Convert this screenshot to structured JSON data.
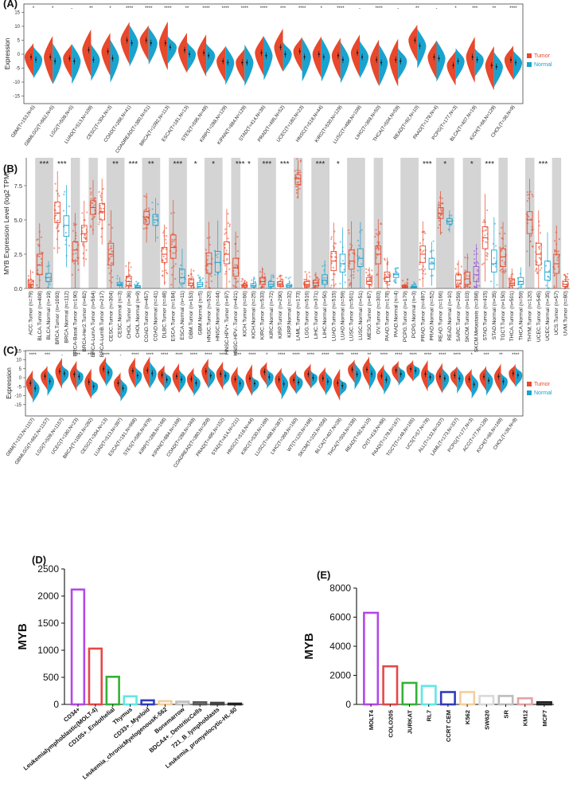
{
  "colors": {
    "tumor": "#e8482c",
    "normal": "#1aa3cf",
    "grey_band": "#d4d4d4",
    "metastasis": "#9b59d0"
  },
  "legend": {
    "tumor": "Tumor",
    "normal": "Normal"
  },
  "chart_data": [
    {
      "panel": "(A)",
      "type": "violin",
      "ylabel": "Expression",
      "ylim": [
        -17,
        17
      ],
      "yticks": [
        15,
        10,
        5,
        0,
        -5,
        -10,
        -15
      ],
      "categories": [
        "GBM(T=153,N=5)",
        "GBMLGG(T=662,N=5)",
        "LGG(T=509,N=5)",
        "LUAD(T=513,N=109)",
        "CESC(T=304,N=3)",
        "COAD(T=288,N=41)",
        "COADREAD(T=380,N=51)",
        "BRCA(T=1092,N=113)",
        "ESCA(T=181,N=13)",
        "STES(T=595,N=49)",
        "KIRP(T=288,N=129)",
        "KIPAN(T=884,N=129)",
        "STAD(T=414,N=36)",
        "PRAD(T=495,N=52)",
        "UCEC(T=180,N=23)",
        "HNSC(T=518,N=44)",
        "KIRC(T=530,N=129)",
        "LUSC(T=498,N=109)",
        "LIHC(T=369,N=50)",
        "THCA(T=504,N=59)",
        "READ(T=92,N=10)",
        "PAAD(T=178,N=4)",
        "PCPG(T=177,N=3)",
        "BLCA(T=407,N=19)",
        "KICH(T=66,N=129)",
        "CHOL(T=36,N=9)"
      ],
      "significance": [
        "*",
        "*",
        "-",
        "**",
        "*",
        "****",
        "****",
        "****",
        "**",
        "****",
        "****",
        "****",
        "****",
        "***",
        "****",
        "*",
        "****",
        "-",
        "****",
        "-",
        "**",
        "-",
        "*",
        "***",
        "**",
        "****"
      ],
      "tumor_median": [
        -1,
        -1,
        -1.5,
        1.5,
        1,
        5,
        5,
        4,
        1.5,
        0.5,
        -2.5,
        -3,
        0.5,
        2.5,
        1,
        0,
        -0.5,
        0.5,
        -2,
        -2,
        5,
        -1,
        -4,
        -1,
        -4,
        -2
      ],
      "normal_median": [
        -2,
        -2.5,
        -2.5,
        -2,
        -1.5,
        4,
        4,
        2.5,
        0,
        -0.5,
        -3,
        -3,
        -0.5,
        0,
        -1,
        -1,
        -2,
        -1,
        -3,
        -2.5,
        3,
        -1.5,
        -2.5,
        -2,
        -4.5,
        -3
      ]
    },
    {
      "panel": "(B)",
      "type": "box",
      "ylabel": "MYB Expression Level (log2 TPM)",
      "ylim": [
        0,
        10
      ],
      "yticks": [
        0,
        2.5,
        5,
        7.5
      ],
      "yticklabels": [
        "0.0",
        "2.5",
        "5.0",
        "7.5"
      ],
      "categories": [
        "ACC.Tumor (n=79)",
        "BLCA.Tumor (n=408)",
        "BLCA.Normal (n=19)",
        "BRCA.Tumor (n=1093)",
        "BRCA.Normal (n=112)",
        "BRCA-Basal.Tumor (n=190)",
        "BRCA-Her2.Tumor (n=82)",
        "BRCA-LumA.Tumor (n=564)",
        "BRCA-LumB.Tumor (n=217)",
        "CESC.Tumor (n=304)",
        "CESC.Normal (n=3)",
        "CHOL.Tumor (n=36)",
        "CHOL.Normal (n=9)",
        "COAD.Tumor (n=457)",
        "COAD.Normal (n=41)",
        "DLBC.Tumor (n=48)",
        "ESCA.Tumor (n=184)",
        "ESCA.Normal (n=11)",
        "GBM.Tumor (n=153)",
        "GBM.Normal (n=5)",
        "HNSC.Tumor (n=520)",
        "HNSC.Normal (n=44)",
        "HNSC-HPV+.Tumor (n=97)",
        "HNSC-HPV-.Tumor (n=421)",
        "KICH.Tumor (n=66)",
        "KICH.Normal (n=25)",
        "KIRC.Tumor (n=533)",
        "KIRC.Normal (n=72)",
        "KIRP.Tumor (n=290)",
        "KIRP.Normal (n=32)",
        "LAML.Tumor (n=173)",
        "LGG.Tumor (n=516)",
        "LIHC.Tumor (n=371)",
        "LIHC.Normal (n=50)",
        "LUAD.Tumor (n=515)",
        "LUAD.Normal (n=59)",
        "LUSC.Tumor (n=501)",
        "LUSC.Normal (n=51)",
        "MESO.Tumor (n=87)",
        "OV.Tumor (n=303)",
        "PAAD.Tumor (n=178)",
        "PAAD.Normal (n=4)",
        "PCPG.Tumor (n=179)",
        "PCPG.Normal (n=3)",
        "PRAD.Tumor (n=497)",
        "PRAD.Normal (n=52)",
        "READ.Tumor (n=166)",
        "READ.Normal (n=10)",
        "SARC.Tumor (n=259)",
        "SKCM.Tumor (n=103)",
        "SKCM.Metastasis (n=368)",
        "STAD.Tumor (n=415)",
        "STAD.Normal (n=35)",
        "TGCT.Tumor (n=150)",
        "THCA.Tumor (n=501)",
        "THCA.Normal (n=59)",
        "THYM.Tumor (n=120)",
        "UCEC.Tumor (n=545)",
        "UCEC.Normal (n=35)",
        "UCS.Tumor (n=57)",
        "UVM.Tumor (n=80)"
      ],
      "median": [
        0.3,
        1.7,
        0.8,
        5.5,
        4.6,
        2.8,
        4.0,
        5.9,
        5.6,
        2.5,
        0.3,
        0.5,
        0.1,
        5.2,
        5.0,
        2.5,
        3.0,
        0.8,
        0.4,
        0.3,
        1.8,
        1.9,
        2.5,
        1.5,
        0.2,
        0.2,
        0.5,
        0.3,
        0.3,
        0.2,
        8.0,
        0.3,
        0.4,
        0.6,
        2.0,
        1.8,
        2.0,
        2.2,
        0.5,
        2.5,
        0.8,
        1.0,
        0.1,
        0.1,
        2.5,
        1.8,
        5.5,
        4.9,
        0.6,
        0.7,
        1.0,
        3.7,
        1.8,
        2.3,
        0.4,
        0.5,
        5.0,
        2.5,
        1.2,
        1.8,
        0.3
      ],
      "q1": [
        0.1,
        1.0,
        0.5,
        4.8,
        3.8,
        2.0,
        3.4,
        5.4,
        5.0,
        1.7,
        0.2,
        0.2,
        0.05,
        4.7,
        4.6,
        1.9,
        2.2,
        0.4,
        0.2,
        0.15,
        1.1,
        1.2,
        1.8,
        0.9,
        0.1,
        0.1,
        0.3,
        0.15,
        0.15,
        0.1,
        7.6,
        0.1,
        0.2,
        0.3,
        1.3,
        1.2,
        1.4,
        1.6,
        0.3,
        1.8,
        0.5,
        0.8,
        0.05,
        0.05,
        1.9,
        1.4,
        5.1,
        4.7,
        0.3,
        0.3,
        0.5,
        2.9,
        1.2,
        1.6,
        0.2,
        0.3,
        4.0,
        1.7,
        0.6,
        1.1,
        0.15
      ],
      "q3": [
        0.6,
        2.5,
        1.1,
        6.3,
        5.3,
        3.4,
        4.6,
        6.4,
        6.2,
        3.3,
        0.45,
        0.9,
        0.2,
        5.6,
        5.4,
        3.0,
        3.9,
        1.4,
        0.7,
        0.45,
        2.6,
        2.7,
        3.4,
        2.2,
        0.3,
        0.35,
        0.8,
        0.5,
        0.5,
        0.3,
        8.3,
        0.5,
        0.6,
        1.0,
        2.7,
        2.5,
        2.8,
        2.9,
        0.8,
        3.1,
        1.2,
        1.1,
        0.2,
        0.15,
        3.1,
        2.2,
        5.9,
        5.1,
        1.0,
        1.2,
        1.6,
        4.5,
        2.8,
        2.9,
        0.7,
        0.8,
        5.6,
        3.3,
        2.0,
        2.5,
        0.5
      ],
      "significance": {
        "BLCA.Tumor (n=408)": "***",
        "BRCA.Tumor (n=1093)": "***",
        "CESC.Tumor (n=304)": "**",
        "CHOL.Tumor (n=36)": "***",
        "COAD.Tumor (n=457)": "**",
        "ESCA.Tumor (n=184)": "***",
        "GBM.Tumor (n=153)": "*",
        "HNSC.Tumor (n=520)": "*",
        "HNSC-HPV-.Tumor (n=421)": "***",
        "KICH.Tumor (n=66)": "*",
        "KIRC.Tumor (n=533)": "***",
        "KIRP.Tumor (n=290)": "***",
        "LIHC.Tumor (n=371)": "***",
        "LUAD.Tumor (n=515)": "*",
        "PRAD.Tumor (n=497)": "***",
        "READ.Tumor (n=166)": "*",
        "SKCM.Tumor (n=103)": "*",
        "STAD.Tumor (n=415)": "***",
        "UCEC.Tumor (n=545)": "***"
      }
    },
    {
      "panel": "(C)",
      "type": "violin",
      "ylabel": "Expression",
      "ylim": [
        -17,
        17
      ],
      "yticks": [
        15,
        10,
        5,
        0,
        -5,
        -10,
        -15
      ],
      "categories": [
        "GBM(T=153,N=1157)",
        "GBMLGG(T=662,N=1157)",
        "LGG(T=509,N=1157)",
        "UCEC(T=180,N=23)",
        "BRCA(T=1092,N=292)",
        "CESC(T=304,N=13)",
        "LUAD(T=513,N=397)",
        "ESCA(T=181,N=668)",
        "STES(T=595,N=879)",
        "KIRP(T=288,N=168)",
        "KIPAN(T=884,N=169)",
        "COAD(T=288,N=349)",
        "COADREAD(T=380,N=359)",
        "PRAD(T=495,N=152)",
        "STAD(T=414,N=211)",
        "HNSC(T=518,N=44)",
        "KIRC(T=530,N=169)",
        "LUSC(T=498,N=387)",
        "LIHC(T=369,N=160)",
        "WT(T=120,N=168)",
        "SKCM(T=102,N=558)",
        "BLCA(T=407,N=28)",
        "THCA(T=504,N=338)",
        "READ(T=92,N=10)",
        "OV(T=419,N=88)",
        "PAAD(T=178,N=167)",
        "TGCT(T=148,N=165)",
        "UCS(T=57,N=78)",
        "ALL(T=132,N=337)",
        "LAML(T=173,N=337)",
        "PCPG(T=177,N=3)",
        "ACC(T=77,N=128)",
        "KICH(T=66,N=169)",
        "CHOL(T=36,N=9)"
      ],
      "significance": [
        "****",
        "***",
        "-",
        "****",
        "****",
        "****",
        "-",
        "****",
        "****",
        "****",
        "****",
        "****",
        "****",
        "****",
        "****",
        "****",
        "*",
        "****",
        "****",
        "****",
        "****",
        "****",
        "****",
        "**",
        "****",
        "****",
        "****",
        "****",
        "****",
        "****",
        "*",
        "***",
        "**",
        "****"
      ]
    },
    {
      "panel": "(D)",
      "type": "bar",
      "ylabel": "MYB",
      "ylim": [
        0,
        2500
      ],
      "yticks": [
        0,
        500,
        1000,
        1500,
        2000,
        2500
      ],
      "categories": [
        "CD34+",
        "Leukemialymphoblastic(MOLT-4)",
        "CD105+_Endothelial",
        "Thymus",
        "CD33+_Myeloid",
        "Leukemia_chronicMyelogenousK-562",
        "Bonemarrow",
        "BDCA4+_DentriticCells",
        "721_B_lymphoblasts",
        "Leukemia_promyelocytic-HL-60"
      ],
      "values": [
        2120,
        1030,
        510,
        150,
        75,
        60,
        50,
        40,
        30,
        15
      ],
      "bar_colors": [
        "#b447e8",
        "#e64848",
        "#35b135",
        "#5fe8e2",
        "#2f3cc0",
        "#f4cf9c",
        "#bdbdbd",
        "#5a5a5a",
        "#444444",
        "#222222"
      ]
    },
    {
      "panel": "(E)",
      "type": "bar",
      "ylabel": "MYB",
      "ylim": [
        0,
        8000
      ],
      "yticks": [
        0,
        2000,
        4000,
        6000,
        8000
      ],
      "categories": [
        "MOLT4",
        "COLO205",
        "JURKAT",
        "RL7",
        "CCRT CEM",
        "K562",
        "SW620",
        "SR",
        "KM12",
        "MCF7"
      ],
      "values": [
        6300,
        2620,
        1480,
        1270,
        850,
        850,
        580,
        580,
        420,
        150
      ],
      "bar_colors": [
        "#b447e8",
        "#e64848",
        "#35b135",
        "#5fe8e2",
        "#2f3cc0",
        "#f4cf9c",
        "#d9d9d9",
        "#bdbdbd",
        "#e6a3a3",
        "#222222"
      ]
    }
  ]
}
